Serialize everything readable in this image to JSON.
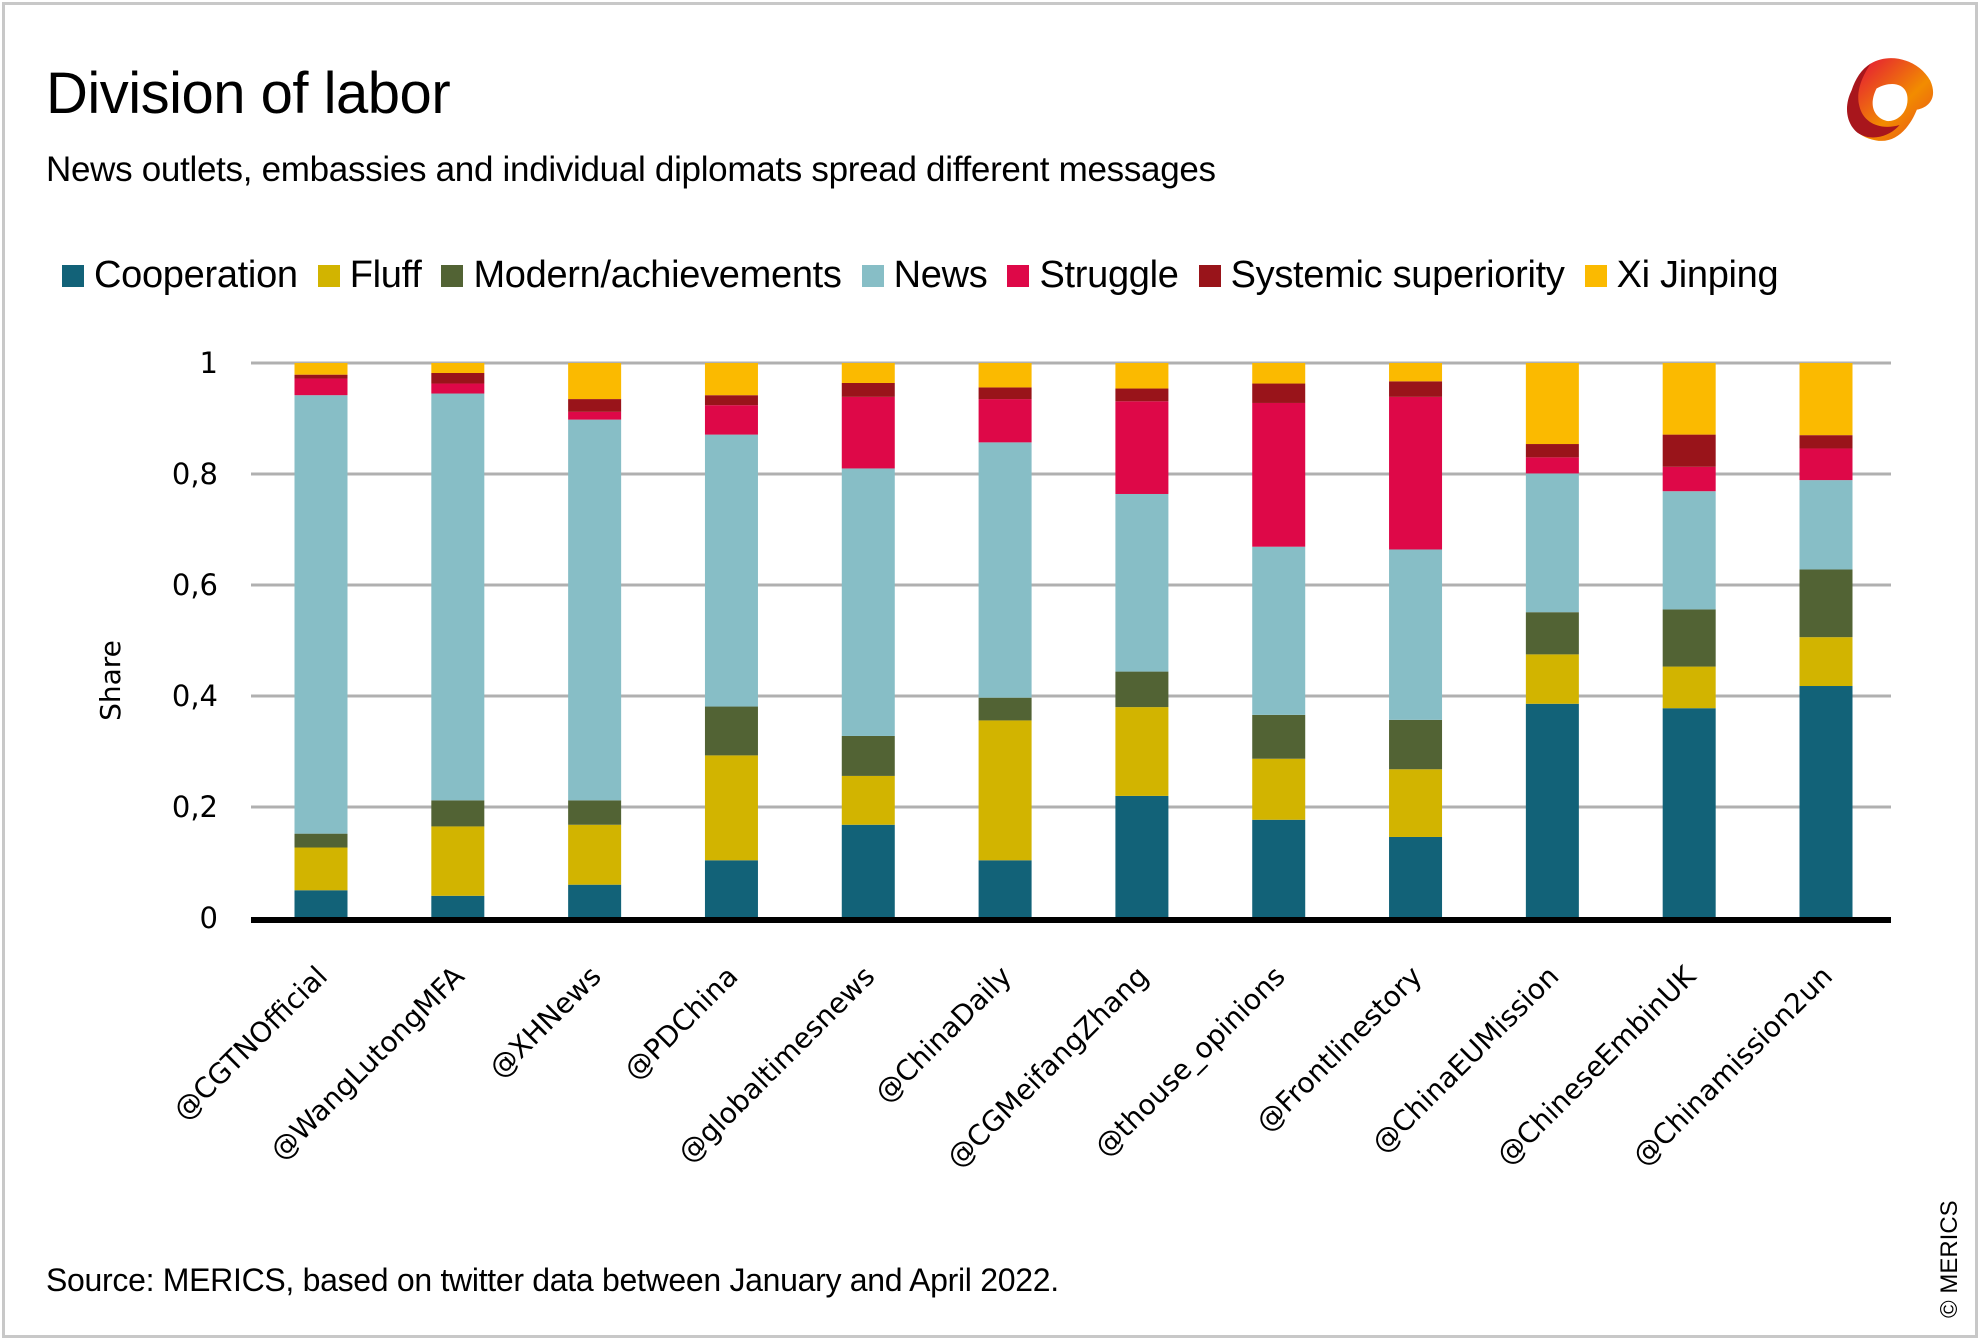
{
  "header": {
    "title": "Division of labor",
    "subtitle": "News outlets, embassies and individual diplomats spread different messages",
    "logo": "merics-logo-icon"
  },
  "footer": {
    "source": "Source: MERICS, based on twitter data between January and April 2022.",
    "copyright": "© MERICS"
  },
  "chart_data": {
    "type": "bar",
    "stacked": true,
    "title": "Division of labor",
    "subtitle": "News outlets, embassies and individual diplomats spread different messages",
    "xlabel": "",
    "ylabel": "Share",
    "ylim": [
      0,
      1
    ],
    "yticks": [
      0,
      0.2,
      0.4,
      0.6,
      0.8,
      1
    ],
    "ytick_labels": [
      "0",
      "0,2",
      "0,4",
      "0,6",
      "0,8",
      "1"
    ],
    "grid": true,
    "legend_position": "top",
    "categories": [
      "@CGTNOfficial",
      "@WangLutongMFA",
      "@XHNews",
      "@PDChina",
      "@globaltimesnews",
      "@ChinaDaily",
      "@CGMeifangZhang",
      "@thouse_opinions",
      "@Frontlinestory",
      "@ChinaEUMission",
      "@ChineseEmbinUK",
      "@Chinamission2un"
    ],
    "series": [
      {
        "name": "Cooperation",
        "color": "#126278",
        "values": [
          0.05,
          0.04,
          0.06,
          0.104,
          0.168,
          0.104,
          0.22,
          0.177,
          0.146,
          0.386,
          0.378,
          0.418
        ]
      },
      {
        "name": "Fluff",
        "color": "#d2b400",
        "values": [
          0.077,
          0.125,
          0.108,
          0.189,
          0.088,
          0.252,
          0.16,
          0.11,
          0.122,
          0.089,
          0.075,
          0.088
        ]
      },
      {
        "name": "Modern/achievements",
        "color": "#526334",
        "values": [
          0.025,
          0.047,
          0.044,
          0.088,
          0.072,
          0.041,
          0.064,
          0.079,
          0.089,
          0.076,
          0.103,
          0.122
        ]
      },
      {
        "name": "News",
        "color": "#87bec6",
        "values": [
          0.79,
          0.733,
          0.686,
          0.49,
          0.482,
          0.46,
          0.32,
          0.303,
          0.307,
          0.25,
          0.213,
          0.161
        ]
      },
      {
        "name": "Struggle",
        "color": "#de0848",
        "values": [
          0.03,
          0.018,
          0.014,
          0.053,
          0.129,
          0.078,
          0.167,
          0.259,
          0.275,
          0.029,
          0.044,
          0.057
        ]
      },
      {
        "name": "Systemic superiority",
        "color": "#99141a",
        "values": [
          0.007,
          0.019,
          0.023,
          0.018,
          0.025,
          0.021,
          0.023,
          0.035,
          0.028,
          0.024,
          0.058,
          0.024
        ]
      },
      {
        "name": "Xi Jinping",
        "color": "#fbba00",
        "values": [
          0.021,
          0.018,
          0.065,
          0.058,
          0.036,
          0.044,
          0.046,
          0.037,
          0.033,
          0.146,
          0.129,
          0.13
        ]
      }
    ]
  }
}
